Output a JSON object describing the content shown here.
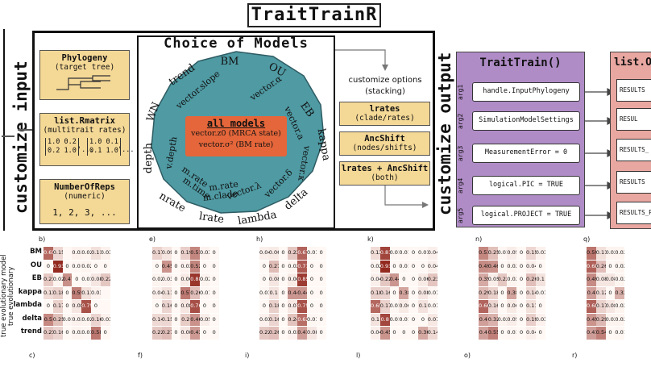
{
  "title": "TraitTrainR",
  "left_vertical_label": "customize input",
  "right_vertical_label": "customize output",
  "input_boxes": [
    {
      "header": "Phylogeny",
      "sub": "(target tree)"
    },
    {
      "header": "list.Rmatrix",
      "sub": "(multitrait rates)",
      "matrix": [
        "1.0 0.2",
        "0.2 1.0",
        "'...",
        "1.0 0.1",
        "0.1 1.0",
        "'..."
      ]
    },
    {
      "header": "NumberOfReps",
      "sub": "(numeric)",
      "value": "1, 2, 3, ..."
    }
  ],
  "models": {
    "title": "Choice of Models",
    "outer_labels": [
      "BM",
      "OU",
      "EB",
      "kappa",
      "delta",
      "lambda",
      "lrate",
      "nrate",
      "depth",
      "WN",
      "trend"
    ],
    "inner_labels": [
      "vector.slope",
      "vector.α",
      "vector.a",
      "vector.κ",
      "vector.δ",
      "vector.λ",
      "m.clade",
      "m.rate",
      "m.time",
      "m.rate",
      "v.depth"
    ],
    "center_title": "all models",
    "center_lines": [
      "vector.z0 (MRCA state)",
      "vector.σ² (BM rate)"
    ]
  },
  "options": {
    "label1": "customize options",
    "label2": "(stacking)",
    "boxes": [
      {
        "header": "lrates",
        "sub": "(clade/rates)"
      },
      {
        "header": "AncShift",
        "sub": "(nodes/shifts)"
      },
      {
        "header": "lrates + AncShift",
        "sub": "(both)"
      }
    ]
  },
  "traittrain": {
    "header": "TraitTrain()",
    "args": [
      {
        "arg": "arg1",
        "value": "handle.InputPhylogeny"
      },
      {
        "arg": "arg2",
        "value": "SimulationModelSettings"
      },
      {
        "arg": "arg3",
        "value": "MeasurementError = 0"
      },
      {
        "arg": "arg4",
        "value": "logical.PIC = TRUE"
      },
      {
        "arg": "arg5",
        "value": "logical.PROJECT = TRUE"
      }
    ]
  },
  "output": {
    "header": "list.O",
    "items": [
      "RESULTS",
      "RESUL",
      "RESULTS_",
      "RESULTS",
      "RESULTS_P"
    ]
  },
  "heatmaps": {
    "top_letters": [
      "b)",
      "e)",
      "h)",
      "k)",
      "n)",
      "q)"
    ],
    "bottom_letters": [
      "c)",
      "f)",
      "i)",
      "l)",
      "o)",
      "r)"
    ],
    "row_labels": [
      "BM",
      "OU",
      "EB",
      "kappa",
      "lambda",
      "delta",
      "trend"
    ],
    "axis_label_line1": "true evolutionary model",
    "axis_label_line2": "true evolutionary",
    "panels": [
      {
        "cells": [
          [
            "0.65",
            "0.15",
            "",
            "0.03",
            "0.02",
            "0.11",
            "0.03"
          ],
          [
            "0",
            "0.93",
            "0",
            "0.01",
            "0.02",
            "0",
            "0"
          ],
          [
            "0.21",
            "0.02",
            "0.47",
            "0",
            "0.01",
            "0.08",
            "0.22"
          ],
          [
            "0.13",
            "0.18",
            "0",
            "0.55",
            "0.11",
            "0.03",
            ""
          ],
          [
            "0",
            "0.17",
            "0",
            "0.08",
            "0.75",
            "0",
            ""
          ],
          [
            "0.5",
            "0.25",
            "0.01",
            "0.03",
            "0.02",
            "0.16",
            "0.03"
          ],
          [
            "0.23",
            "0.16",
            "0",
            "0.02",
            "0.01",
            "0.58",
            "0"
          ]
        ],
        "values": [
          [
            0.65,
            0.15,
            0,
            0.03,
            0.02,
            0.11,
            0.03
          ],
          [
            0,
            0.93,
            0,
            0.01,
            0.02,
            0,
            0
          ],
          [
            0.21,
            0.02,
            0.47,
            0,
            0.01,
            0.08,
            0.22
          ],
          [
            0.13,
            0.18,
            0,
            0.55,
            0.11,
            0.03,
            0
          ],
          [
            0,
            0.17,
            0,
            0.08,
            0.75,
            0,
            0
          ],
          [
            0.5,
            0.25,
            0.01,
            0.03,
            0.02,
            0.16,
            0.03
          ],
          [
            0.23,
            0.16,
            0,
            0.02,
            0.01,
            0.58,
            0
          ]
        ]
      },
      {
        "cells": [
          [
            "0.17",
            "0.09",
            "0",
            "0.19",
            "0.51",
            "0.03",
            "0"
          ],
          [
            "0",
            "0.45",
            "0",
            "0.03",
            "0.52",
            "0",
            "0"
          ],
          [
            "0.02",
            "0.03",
            "0",
            "0.06",
            "0.88",
            "0.02",
            "0"
          ],
          [
            "0.04",
            "0.11",
            "0",
            "0.57",
            "0.26",
            "0.01",
            "0"
          ],
          [
            "0",
            "0.16",
            "0",
            "0.08",
            "0.76",
            "0",
            "0"
          ],
          [
            "0.14",
            "0.15",
            "0",
            "0.2",
            "0.46",
            "0.05",
            "0"
          ],
          [
            "0.22",
            "0.27",
            "0",
            "0.08",
            "0.43",
            "0",
            "0"
          ]
        ],
        "values": [
          [
            0.17,
            0.09,
            0,
            0.19,
            0.51,
            0.03,
            0
          ],
          [
            0,
            0.45,
            0,
            0.03,
            0.52,
            0,
            0
          ],
          [
            0.02,
            0.03,
            0,
            0.06,
            0.88,
            0.02,
            0
          ],
          [
            0.04,
            0.11,
            0,
            0.57,
            0.26,
            0.01,
            0
          ],
          [
            0,
            0.16,
            0,
            0.08,
            0.76,
            0,
            0
          ],
          [
            0.14,
            0.15,
            0,
            0.2,
            0.46,
            0.05,
            0
          ],
          [
            0.22,
            0.27,
            0,
            0.08,
            0.43,
            0,
            0
          ]
        ]
      },
      {
        "cells": [
          [
            "0.04",
            "0.06",
            "0",
            "0.22",
            "0.67",
            "0.01",
            "0"
          ],
          [
            "0",
            "0.27",
            "0",
            "0.02",
            "0.71",
            "0",
            "0"
          ],
          [
            "0",
            "0.08",
            "0",
            "0.06",
            "0.85",
            "0",
            "0"
          ],
          [
            "0.01",
            "0.1",
            "0",
            "0.44",
            "0.44",
            "0",
            "0"
          ],
          [
            "0",
            "0.18",
            "0",
            "0.07",
            "0.75",
            "0",
            "0"
          ],
          [
            "0.03",
            "0.16",
            "0",
            "0.24",
            "0.62",
            "0.01",
            "0"
          ],
          [
            "0.22",
            "0.26",
            "0",
            "0.03",
            "0.41",
            "0.08",
            "0"
          ]
        ],
        "values": [
          [
            0.04,
            0.06,
            0,
            0.22,
            0.67,
            0.01,
            0
          ],
          [
            0,
            0.27,
            0,
            0.02,
            0.71,
            0,
            0
          ],
          [
            0,
            0.08,
            0,
            0.06,
            0.85,
            0,
            0
          ],
          [
            0.01,
            0.1,
            0,
            0.44,
            0.44,
            0,
            0
          ],
          [
            0,
            0.18,
            0,
            0.07,
            0.75,
            0,
            0
          ],
          [
            0.03,
            0.16,
            0,
            0.24,
            0.62,
            0.01,
            0
          ],
          [
            0.22,
            0.26,
            0,
            0.03,
            0.41,
            0.08,
            0
          ]
        ]
      },
      {
        "cells": [
          [
            "0.13",
            "0.81",
            "0.01",
            "0.01",
            "0",
            "0.01",
            "0.04"
          ],
          [
            "0.02",
            "0.93",
            "0",
            "0.01",
            "0",
            "0",
            "0.04"
          ],
          [
            "0.04",
            "0.22",
            "0.44",
            "0",
            "0",
            "0.06",
            "0.23"
          ],
          [
            "0.18",
            "0.16",
            "0",
            "0.38",
            "0",
            "0.08",
            "0.01"
          ],
          [
            "0.65",
            "0.17",
            "0.01",
            "0.06",
            "0",
            "0.1",
            "0.01"
          ],
          [
            "0.1",
            "0.8",
            "0.01",
            "0.01",
            "0",
            "0",
            "0.07"
          ],
          [
            "0.04",
            "0.45",
            "0",
            "0",
            "0",
            "0.36",
            "0.14"
          ]
        ],
        "values": [
          [
            0.13,
            0.81,
            0.01,
            0.01,
            0,
            0.01,
            0.04
          ],
          [
            0.02,
            0.93,
            0,
            0.01,
            0,
            0,
            0.04
          ],
          [
            0.04,
            0.22,
            0.44,
            0,
            0,
            0.06,
            0.23
          ],
          [
            0.18,
            0.16,
            0,
            0.38,
            0,
            0.08,
            0.01
          ],
          [
            0.65,
            0.17,
            0.01,
            0.06,
            0,
            0.1,
            0.01
          ],
          [
            0.1,
            0.8,
            0.01,
            0.01,
            0,
            0,
            0.07
          ],
          [
            0.04,
            0.45,
            0,
            0,
            0,
            0.36,
            0.14
          ]
        ]
      },
      {
        "cells": [
          [
            "0.51",
            "0.25",
            "0.01",
            "0.05",
            "0",
            "0.15",
            "0.03"
          ],
          [
            "0.49",
            "0.46",
            "0",
            "0.02",
            "0",
            "0.04",
            "0"
          ],
          [
            "0.35",
            "0.05",
            "0.22",
            "0.02",
            "0",
            "0.26",
            "0.1"
          ],
          [
            "0.29",
            "0.18",
            "0",
            "0.38",
            "0",
            "0.14",
            "0.01"
          ],
          [
            "0.66",
            "0.16",
            "0",
            "0.06",
            "0",
            "0.11",
            "0"
          ],
          [
            "0.4",
            "0.32",
            "0.02",
            "0.05",
            "0",
            "0.19",
            "0.03"
          ],
          [
            "0.4",
            "0.55",
            "0",
            "0.01",
            "0",
            "0.04",
            "0"
          ]
        ],
        "values": [
          [
            0.51,
            0.25,
            0.01,
            0.05,
            0,
            0.15,
            0.03
          ],
          [
            0.49,
            0.46,
            0,
            0.02,
            0,
            0.04,
            0
          ],
          [
            0.35,
            0.05,
            0.22,
            0.02,
            0,
            0.26,
            0.1
          ],
          [
            0.29,
            0.18,
            0,
            0.38,
            0,
            0.14,
            0.01
          ],
          [
            0.66,
            0.16,
            0,
            0.06,
            0,
            0.11,
            0
          ],
          [
            0.4,
            0.32,
            0.02,
            0.05,
            0,
            0.19,
            0.03
          ],
          [
            0.4,
            0.55,
            0,
            0.01,
            0,
            0.04,
            0
          ]
        ]
      },
      {
        "cells": [
          [
            "0.59",
            "0.11",
            "0.02",
            "0.02"
          ],
          [
            "0.68",
            "0.26",
            "0",
            "0.02"
          ],
          [
            "0.49",
            "0.08",
            "0.08",
            "0.02"
          ],
          [
            "0.4",
            "0.12",
            "0",
            "0.32"
          ],
          [
            "0.68",
            "0.17",
            "0.08",
            "0.02"
          ],
          [
            "0.45",
            "0.29",
            "0.02",
            "0.02"
          ],
          [
            "0.41",
            "0.54",
            "0",
            "0.01"
          ]
        ],
        "values": [
          [
            0.59,
            0.11,
            0.02,
            0.02
          ],
          [
            0.68,
            0.26,
            0,
            0.02
          ],
          [
            0.49,
            0.08,
            0.08,
            0.02
          ],
          [
            0.4,
            0.12,
            0,
            0.32
          ],
          [
            0.68,
            0.17,
            0.08,
            0.02
          ],
          [
            0.45,
            0.29,
            0.02,
            0.02
          ],
          [
            0.41,
            0.54,
            0,
            0.01
          ]
        ]
      }
    ]
  },
  "colors": {
    "yellow_box": "#f4d896",
    "purple": "#b08cc7",
    "red": "#e9a7a1",
    "teal": "#4f9aa3",
    "orange": "#e5663a",
    "heat_max": "#8b1a10"
  }
}
